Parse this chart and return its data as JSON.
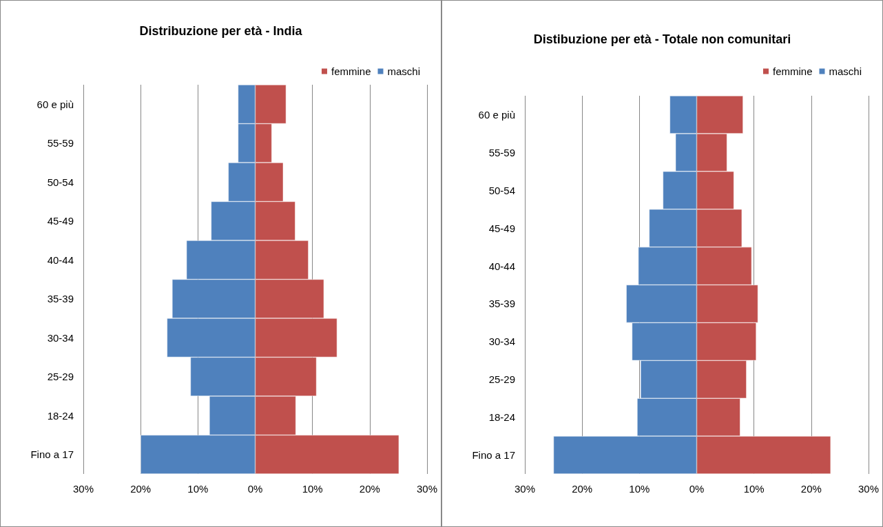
{
  "chart_data": [
    {
      "type": "bar",
      "title": "Distribuzione per età - India",
      "orientation": "horizontal",
      "stacked": true,
      "categories": [
        "60 e più",
        "55-59",
        "50-54",
        "45-49",
        "40-44",
        "35-39",
        "30-34",
        "25-29",
        "18-24",
        "Fino a 17"
      ],
      "series": [
        {
          "name": "femmine",
          "color": "#c0504d",
          "values": [
            5.4,
            2.9,
            4.9,
            7.0,
            9.3,
            12.0,
            14.3,
            10.7,
            7.1,
            25.1
          ]
        },
        {
          "name": "maschi",
          "color": "#4f81bd",
          "values": [
            -3.0,
            -3.0,
            -4.7,
            -7.7,
            -12.0,
            -14.5,
            -15.4,
            -11.3,
            -8.0,
            -20.0
          ]
        }
      ],
      "xlim": [
        -30,
        30
      ],
      "xticks": [
        {
          "value": -30,
          "label": "30%"
        },
        {
          "value": -20,
          "label": "20%"
        },
        {
          "value": -10,
          "label": "10%"
        },
        {
          "value": 0,
          "label": "0%"
        },
        {
          "value": 10,
          "label": "10%"
        },
        {
          "value": 20,
          "label": "20%"
        },
        {
          "value": 30,
          "label": "30%"
        }
      ],
      "grid": "x",
      "legend": "top right"
    },
    {
      "type": "bar",
      "title": "Distibuzione per età - Totale non comunitari",
      "orientation": "horizontal",
      "stacked": true,
      "categories": [
        "60 e più",
        "55-59",
        "50-54",
        "45-49",
        "40-44",
        "35-39",
        "30-34",
        "25-29",
        "18-24",
        "Fino a 17"
      ],
      "series": [
        {
          "name": "femmine",
          "color": "#c0504d",
          "values": [
            8.1,
            5.3,
            6.5,
            7.9,
            9.6,
            10.7,
            10.4,
            8.7,
            7.6,
            23.4
          ]
        },
        {
          "name": "maschi",
          "color": "#4f81bd",
          "values": [
            -4.7,
            -3.7,
            -5.9,
            -8.3,
            -10.2,
            -12.3,
            -11.3,
            -9.8,
            -10.4,
            -25.0
          ]
        }
      ],
      "xlim": [
        -30,
        30
      ],
      "xticks": [
        {
          "value": -30,
          "label": "30%"
        },
        {
          "value": -20,
          "label": "20%"
        },
        {
          "value": -10,
          "label": "10%"
        },
        {
          "value": 0,
          "label": "0%"
        },
        {
          "value": 10,
          "label": "10%"
        },
        {
          "value": 20,
          "label": "20%"
        },
        {
          "value": 30,
          "label": "30%"
        }
      ],
      "grid": "x",
      "legend": "top right"
    }
  ]
}
